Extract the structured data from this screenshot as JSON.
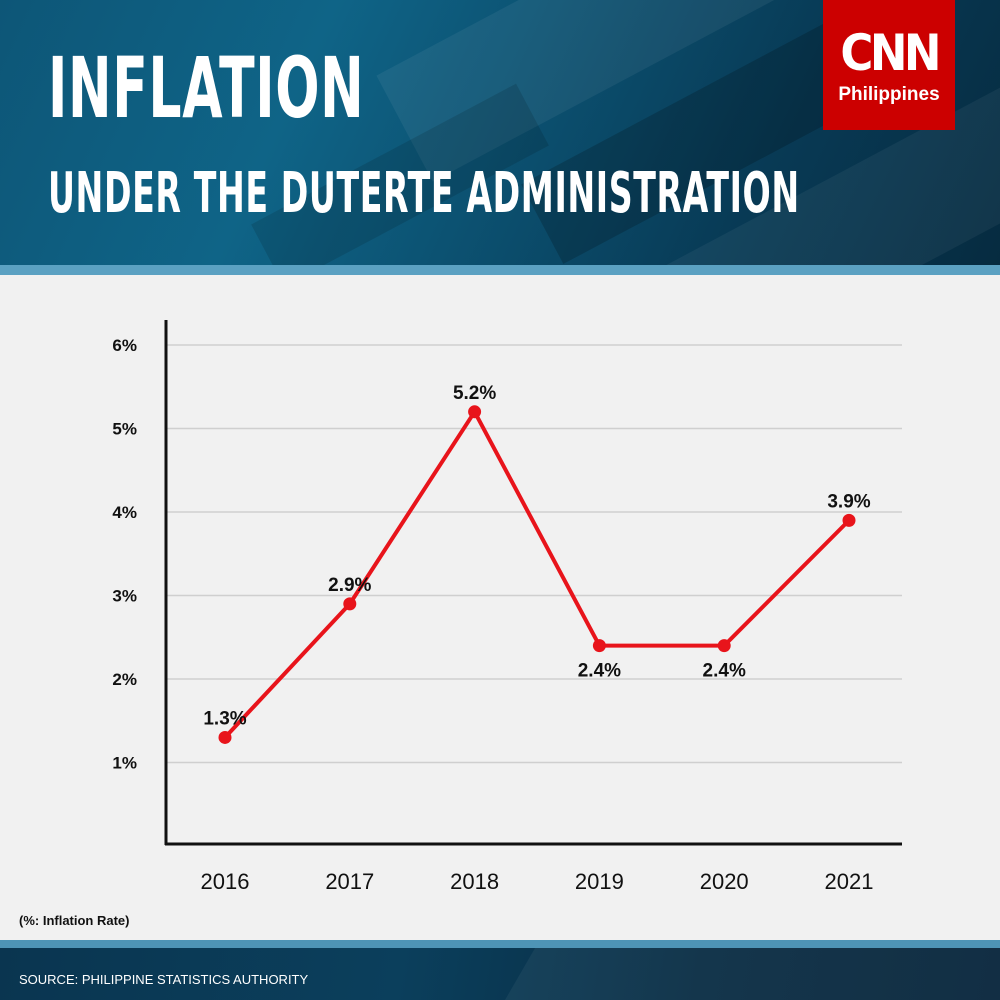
{
  "header": {
    "title": "INFLATION",
    "subtitle": "UNDER THE DUTERTE ADMINISTRATION"
  },
  "logo": {
    "mark": "CNN",
    "sub": "Philippines"
  },
  "note": "(%: Inflation Rate)",
  "footer": {
    "source": "SOURCE: PHILIPPINE STATISTICS AUTHORITY"
  },
  "colors": {
    "line": "#e8141b",
    "brand_red": "#cc0000",
    "header_blue": "#0f6487",
    "accent_blue": "#5ba1c2"
  },
  "chart_data": {
    "type": "line",
    "categories": [
      "2016",
      "2017",
      "2018",
      "2019",
      "2020",
      "2021"
    ],
    "series": [
      {
        "values": [
          1.3,
          2.9,
          5.2,
          2.4,
          2.4,
          3.9
        ],
        "labels": [
          "1.3%",
          "2.9%",
          "5.2%",
          "2.4%",
          "2.4%",
          "3.9%"
        ]
      }
    ],
    "y_ticks": [
      1,
      2,
      3,
      4,
      5,
      6
    ],
    "y_tick_labels": [
      "1%",
      "2%",
      "3%",
      "4%",
      "5%",
      "6%"
    ],
    "ylim": [
      0,
      6
    ],
    "grid": true,
    "label_placement": [
      "above",
      "above",
      "above",
      "below",
      "below",
      "above"
    ]
  }
}
